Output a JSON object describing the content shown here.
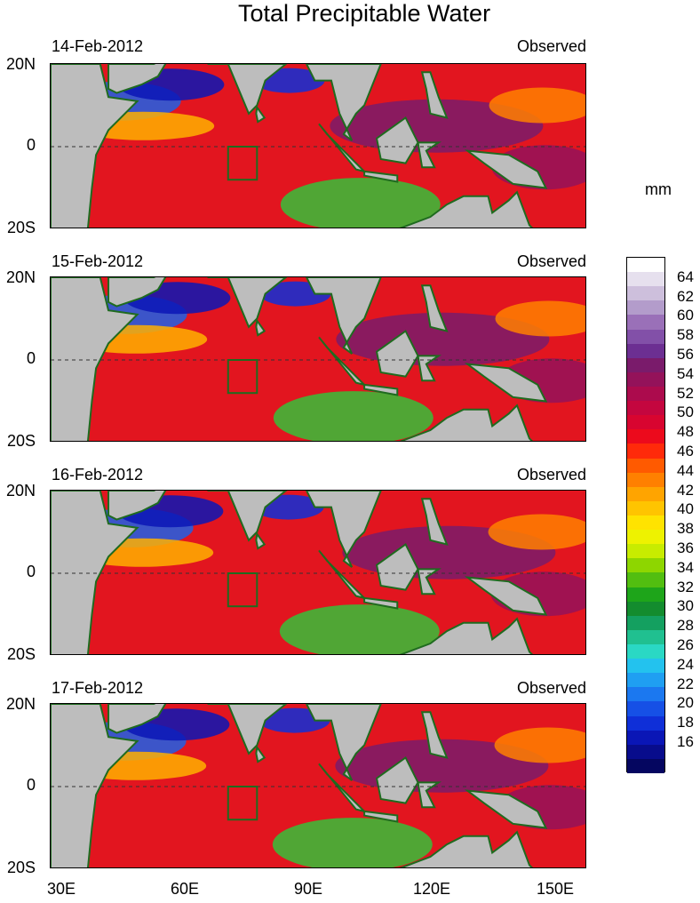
{
  "title": "Total Precipitable Water",
  "unit": "mm",
  "panels": [
    {
      "date": "14-Feb-2012",
      "label": "Observed"
    },
    {
      "date": "15-Feb-2012",
      "label": "Observed"
    },
    {
      "date": "16-Feb-2012",
      "label": "Observed"
    },
    {
      "date": "17-Feb-2012",
      "label": "Observed"
    }
  ],
  "lat_labels": [
    "20N",
    "0",
    "20S"
  ],
  "lon_labels": [
    "30E",
    "60E",
    "90E",
    "120E",
    "150E"
  ],
  "colorbar": {
    "labels": [
      "64",
      "62",
      "60",
      "58",
      "56",
      "54",
      "52",
      "50",
      "48",
      "46",
      "44",
      "42",
      "40",
      "38",
      "36",
      "34",
      "32",
      "30",
      "28",
      "26",
      "24",
      "22",
      "20",
      "18",
      "16"
    ],
    "colors": [
      "#ffffff",
      "#e6e0ee",
      "#cdbfdc",
      "#b39ccb",
      "#9a70b8",
      "#8250a8",
      "#6c2f92",
      "#7a1b6b",
      "#94125a",
      "#ac0b4d",
      "#c4063f",
      "#d80530",
      "#ec0a1c",
      "#ff2a0a",
      "#ff5a00",
      "#ff8000",
      "#ffa400",
      "#ffc400",
      "#ffe300",
      "#eef200",
      "#c8ec00",
      "#8ed600",
      "#52be10",
      "#1ea51a",
      "#138c2e",
      "#14a060",
      "#20c090",
      "#2ad8c4",
      "#23c2ee",
      "#1f9ff2",
      "#1b78f0",
      "#1650e6",
      "#0f2fd8",
      "#0a16b6",
      "#080c8c",
      "#050660"
    ]
  },
  "box": {
    "lon": [
      73,
      80
    ],
    "lat": [
      -8,
      0
    ]
  }
}
